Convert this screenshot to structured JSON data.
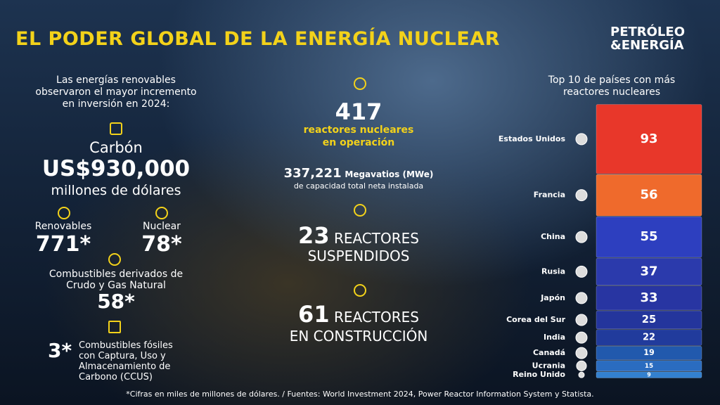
{
  "header": {
    "title": "EL PODER GLOBAL DE LA ENERGÍA NUCLEAR",
    "brand": [
      "PETRÓLEO",
      "&ENERGÍA"
    ]
  },
  "investment": {
    "intro": "Las energías renovables observaron el mayor incremento en inversión en 2024:",
    "coal": {
      "label": "Carbón",
      "value": "US$930,000",
      "unit": "millones de dólares"
    },
    "renewables": {
      "label": "Renovables",
      "value": "771*"
    },
    "nuclear": {
      "label": "Nuclear",
      "value": "78*"
    },
    "fuels": {
      "label": "Combustibles derivados de Crudo y Gas Natural",
      "value": "58*"
    },
    "ccus": {
      "value": "3*",
      "label": "Combustibles fósiles con Captura, Uso y Almacenamiento de Carbono (CCUS)"
    }
  },
  "stats": {
    "operating": {
      "value": "417",
      "label": "reactores nucleares en operación"
    },
    "capacity": {
      "value": "337,221",
      "unit": "Megavatios (MWe)",
      "label": "de capacidad total neta instalada"
    },
    "suspended": {
      "value": "23",
      "label": "REACTORES",
      "label2": "SUSPENDIDOS"
    },
    "construction": {
      "value": "61",
      "label": "REACTORES",
      "label2": "EN CONSTRUCCIÓN"
    }
  },
  "ranking": {
    "title": "Top 10 de países con más reactores nucleares",
    "countries": [
      "Estados Unidos",
      "Francia",
      "China",
      "Rusia",
      "Japón",
      "Corea del Sur",
      "India",
      "Canadá",
      "Ucrania",
      "Reino Unido"
    ],
    "values": [
      93,
      56,
      55,
      37,
      33,
      25,
      22,
      19,
      15,
      9
    ],
    "colors": [
      "#e8372a",
      "#ef6a2c",
      "#2d3fbf",
      "#2b3aac",
      "#2835a2",
      "#24359c",
      "#213b9c",
      "#2159ad",
      "#2a6cc0",
      "#3380cf"
    ]
  },
  "footer": "*Cifras en miles de millones de dólares. / Fuentes: World Investment 2024, Power Reactor Information System y Statista."
}
